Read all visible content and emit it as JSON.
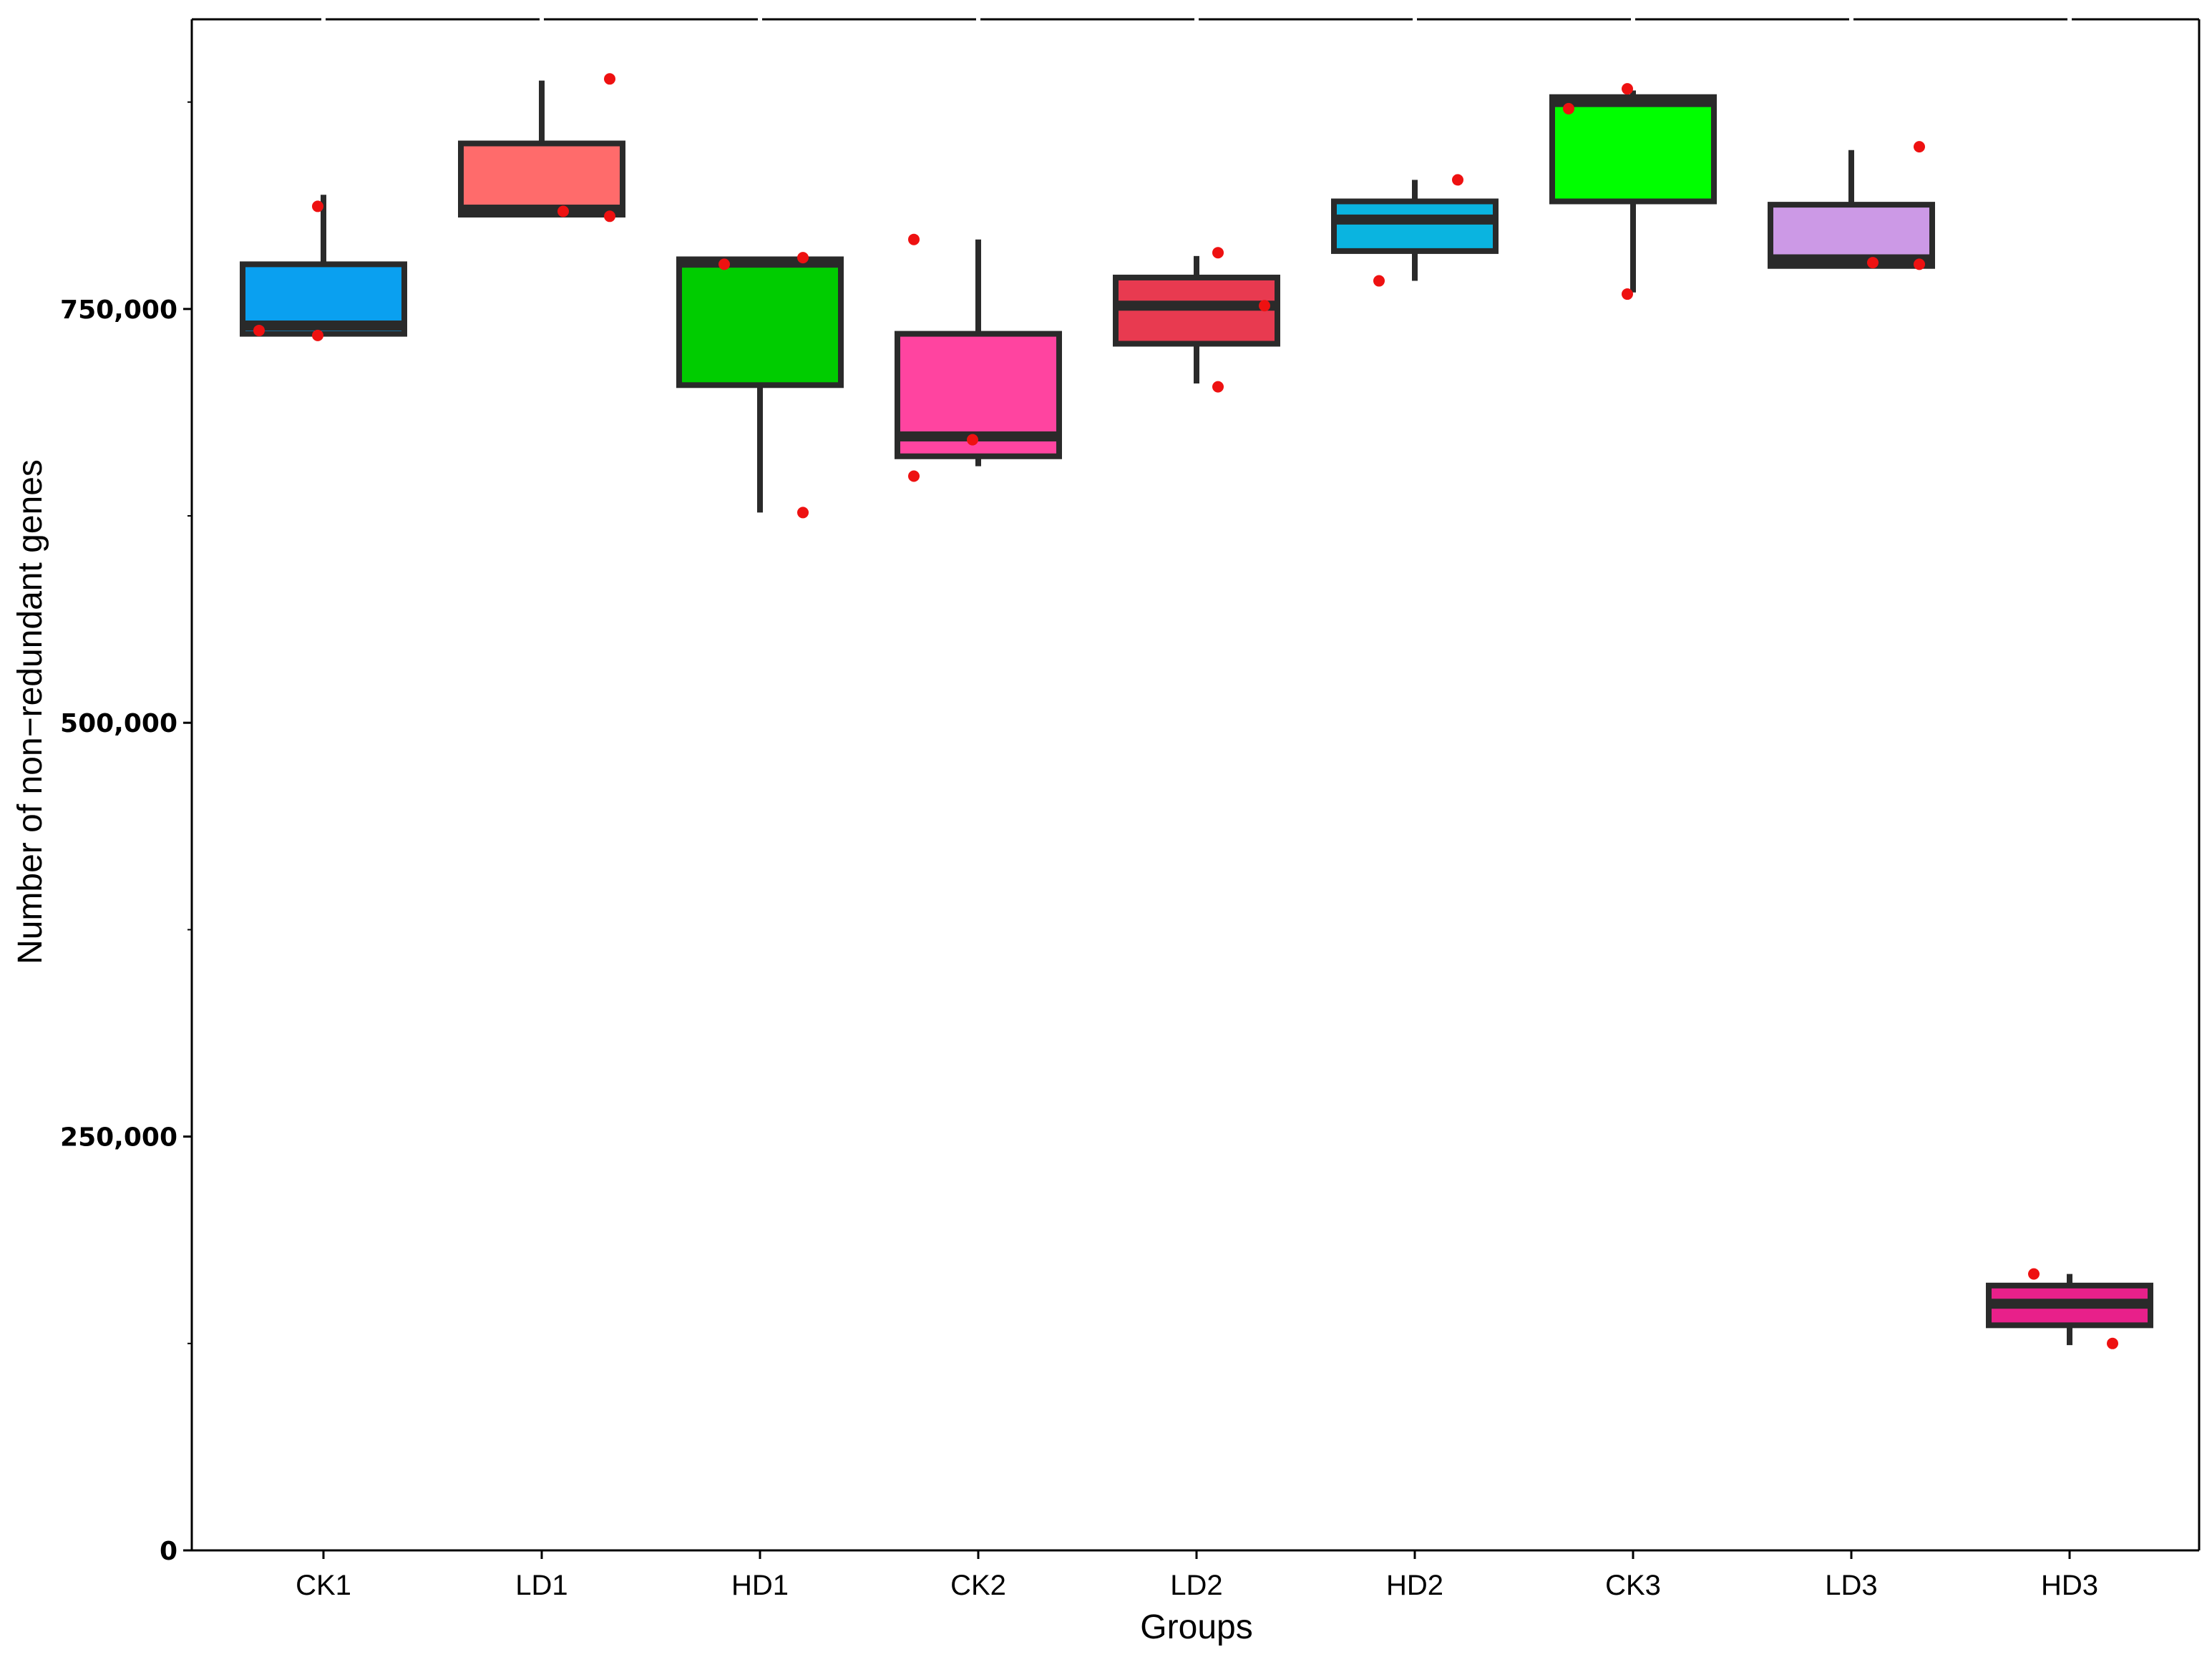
{
  "chart_data": {
    "type": "boxplot",
    "title": "",
    "xlabel": "Groups",
    "ylabel": "Number of non−redundant genes",
    "ylim": [
      0,
      925000
    ],
    "yticks": [
      0,
      250000,
      500000,
      750000
    ],
    "ytick_labels": [
      "0",
      "250,000",
      "500,000",
      "750,000"
    ],
    "grid": false,
    "legend": "none",
    "categories": [
      "CK1",
      "LD1",
      "HD1",
      "CK2",
      "LD2",
      "HD2",
      "CK3",
      "LD3",
      "HD3"
    ],
    "boxes": [
      {
        "group": "CK1",
        "color": "#0aa0f0",
        "whisker_low": 735000,
        "q1": 735000,
        "median": 740000,
        "q3": 777000,
        "whisker_high": 819000,
        "points": [
          734000,
          737000,
          812000
        ]
      },
      {
        "group": "LD1",
        "color": "#ff6b6b",
        "whisker_low": 807000,
        "q1": 807000,
        "median": 810000,
        "q3": 850000,
        "whisker_high": 888000,
        "points": [
          806000,
          809000,
          889000
        ]
      },
      {
        "group": "HD1",
        "color": "#00cc00",
        "whisker_low": 627000,
        "q1": 704000,
        "median": 778000,
        "q3": 780000,
        "whisker_high": 780000,
        "points": [
          627000,
          777000,
          781000
        ]
      },
      {
        "group": "CK2",
        "color": "#ff44a0",
        "whisker_low": 655000,
        "q1": 661000,
        "median": 673000,
        "q3": 735000,
        "whisker_high": 792000,
        "points": [
          649000,
          671000,
          792000
        ]
      },
      {
        "group": "LD2",
        "color": "#e83a50",
        "whisker_low": 705000,
        "q1": 729000,
        "median": 752000,
        "q3": 769000,
        "whisker_high": 782000,
        "points": [
          703000,
          752000,
          784000
        ]
      },
      {
        "group": "HD2",
        "color": "#0ab4e0",
        "whisker_low": 767000,
        "q1": 785000,
        "median": 804000,
        "q3": 815000,
        "whisker_high": 828000,
        "points": [
          767000,
          828000
        ]
      },
      {
        "group": "CK3",
        "color": "#00ff00",
        "whisker_low": 760000,
        "q1": 815000,
        "median": 875000,
        "q3": 878000,
        "whisker_high": 882000,
        "points": [
          759000,
          871000,
          883000
        ]
      },
      {
        "group": "LD3",
        "color": "#cc99e6",
        "whisker_low": 776000,
        "q1": 776000,
        "median": 780000,
        "q3": 813000,
        "whisker_high": 846000,
        "points": [
          777000,
          778000,
          848000
        ]
      },
      {
        "group": "HD3",
        "color": "#e8208a",
        "whisker_low": 124000,
        "q1": 136000,
        "median": 149000,
        "q3": 160000,
        "whisker_high": 167000,
        "points": [
          125000,
          167000
        ]
      }
    ]
  }
}
